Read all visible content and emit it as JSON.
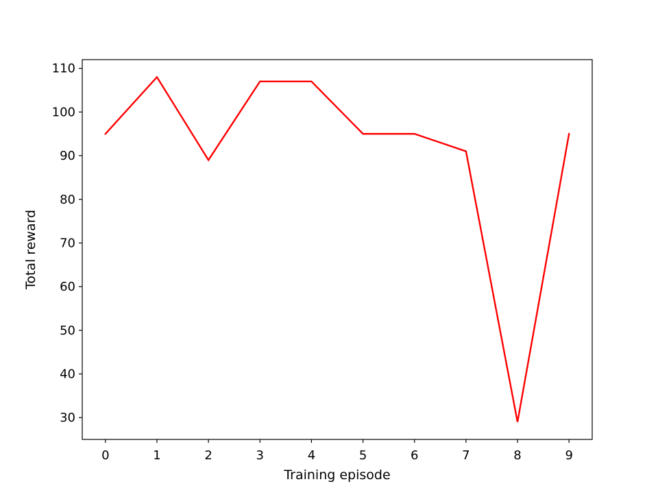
{
  "chart_data": {
    "type": "line",
    "title": "",
    "xlabel": "Training episode",
    "ylabel": "Total reward",
    "x": [
      0,
      1,
      2,
      3,
      4,
      5,
      6,
      7,
      8,
      9
    ],
    "series": [
      {
        "values": [
          95,
          108,
          89,
          107,
          107,
          95,
          95,
          91,
          29,
          95
        ],
        "color": "#ff0000"
      }
    ],
    "xticks": [
      "0",
      "1",
      "2",
      "3",
      "4",
      "5",
      "6",
      "7",
      "8",
      "9"
    ],
    "yticks": [
      "30",
      "40",
      "50",
      "60",
      "70",
      "80",
      "90",
      "100",
      "110"
    ],
    "xlim": [
      -0.45,
      9.45
    ],
    "ylim": [
      25,
      112
    ],
    "grid": false,
    "legend": "none"
  }
}
